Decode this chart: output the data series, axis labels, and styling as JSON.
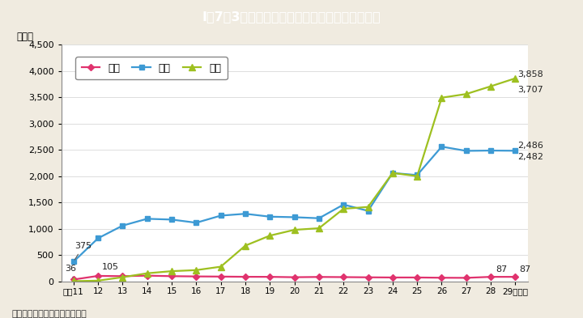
{
  "title": "I－7－3図　夫から妻への犯罪の検挙件数の推移",
  "title_bg_color": "#2ab4cc",
  "bg_color": "#f0ebe0",
  "plot_bg_color": "#ffffff",
  "ylabel": "（件）",
  "xlabel_note": "（備考）警察庁資料より作成。",
  "year_labels": [
    "平成11",
    "12",
    "13",
    "14",
    "15",
    "16",
    "17",
    "18",
    "19",
    "20",
    "21",
    "22",
    "23",
    "24",
    "25",
    "26",
    "27",
    "28",
    "29（年）"
  ],
  "satsujin": [
    36,
    105,
    100,
    110,
    100,
    95,
    92,
    88,
    87,
    80,
    85,
    82,
    78,
    75,
    75,
    70,
    68,
    87,
    87
  ],
  "shogai": [
    375,
    820,
    1060,
    1190,
    1175,
    1115,
    1250,
    1285,
    1230,
    1220,
    1200,
    1460,
    1340,
    2060,
    2020,
    2560,
    2480,
    2486,
    2482
  ],
  "boko": [
    5,
    15,
    80,
    155,
    195,
    215,
    280,
    680,
    870,
    980,
    1010,
    1380,
    1415,
    2060,
    2000,
    3490,
    3560,
    3707,
    3858
  ],
  "satsujin_color": "#e0336e",
  "shogai_color": "#3d9ad4",
  "boko_color": "#9ec020",
  "ylim": [
    0,
    4500
  ],
  "yticks": [
    0,
    500,
    1000,
    1500,
    2000,
    2500,
    3000,
    3500,
    4000,
    4500
  ],
  "legend_satsujin": "殺人",
  "legend_shogai": "傷害",
  "legend_boko": "暴行"
}
